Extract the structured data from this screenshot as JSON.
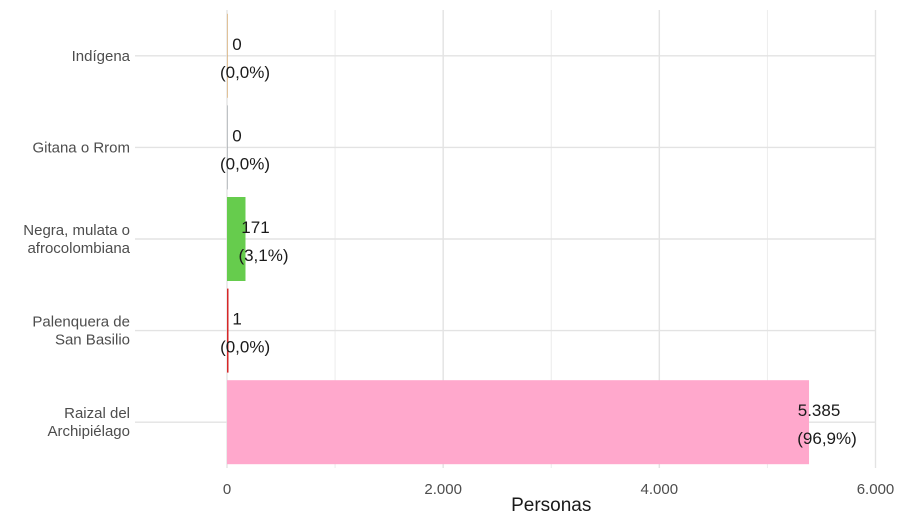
{
  "chart_data": {
    "type": "bar",
    "orientation": "horizontal",
    "categories": [
      "Indígena",
      "Gitana o Rrom",
      "Negra, mulata o\nafrocolombiana",
      "Palenquera de\nSan Basilio",
      "Raizal del\nArchipiélago"
    ],
    "values": [
      0,
      0,
      171,
      1,
      5385
    ],
    "percent_labels": [
      "(0,0%)",
      "(0,0%)",
      "(3,1%)",
      "(0,0%)",
      "(96,9%)"
    ],
    "value_labels": [
      "0",
      "0",
      "171",
      "1",
      "5.385"
    ],
    "bar_colors": [
      "#d4a05a",
      "#9aa0a6",
      "#66cc4d",
      "#d62728",
      "#ffa8cc"
    ],
    "xlabel": "Personas",
    "ylabel": "",
    "title": "",
    "xlim": [
      0,
      6000
    ],
    "xticks": [
      0,
      2000,
      4000,
      6000
    ],
    "xtick_labels": [
      "0",
      "2.000",
      "4.000",
      "6.000"
    ],
    "grid": true,
    "legend": "none"
  }
}
